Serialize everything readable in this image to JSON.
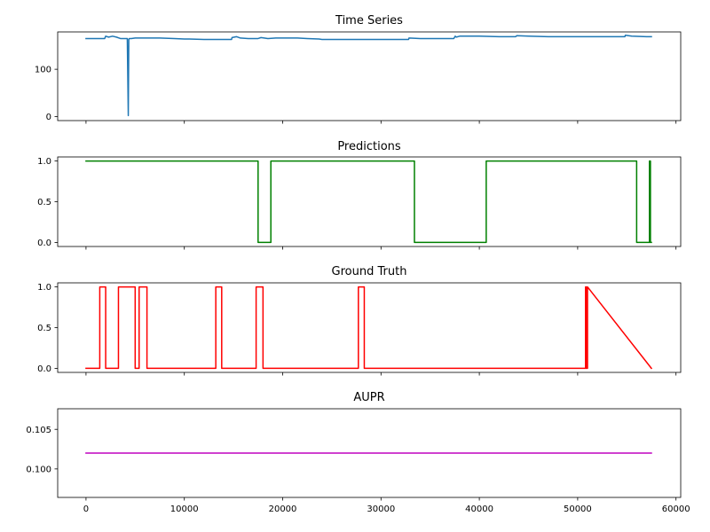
{
  "chart_data": [
    {
      "type": "line",
      "title": "Time Series",
      "xlabel": "",
      "ylabel": "",
      "xlim": [
        -2880,
        60480
      ],
      "ylim": [
        -8.5,
        179
      ],
      "yticks": [
        0,
        100
      ],
      "xticks": [
        0,
        10000,
        20000,
        30000,
        40000,
        50000,
        60000
      ],
      "xtick_labels_visible": false,
      "series": [
        {
          "color": "#1f77b4",
          "x": [
            0,
            1900,
            2000,
            2300,
            2700,
            3100,
            3500,
            4200,
            4300,
            4350,
            4400,
            4600,
            5000,
            6000,
            7500,
            9000,
            10000,
            10500,
            12000,
            13000,
            14000,
            14800,
            14850,
            15300,
            15700,
            16500,
            17500,
            17800,
            18500,
            19300,
            20000,
            21500,
            22500,
            23700,
            24000,
            26000,
            28000,
            30000,
            32500,
            32800,
            32850,
            34000,
            35000,
            37400,
            37550,
            37650,
            38000,
            40000,
            42000,
            43700,
            43800,
            45000,
            47000,
            49000,
            51000,
            53000,
            54800,
            54850,
            55500,
            57000,
            57500
          ],
          "values": [
            165,
            165,
            170,
            168,
            170,
            168,
            165,
            165,
            2,
            163,
            165,
            165,
            166,
            166,
            166,
            165,
            164,
            164,
            163,
            163,
            163,
            163,
            167,
            169,
            166,
            165,
            165,
            167,
            165,
            166,
            166,
            166,
            165,
            164,
            163,
            163,
            163,
            163,
            163,
            163,
            166,
            165,
            165,
            165,
            170,
            168,
            170,
            170,
            169,
            169,
            171,
            170,
            169,
            169,
            169,
            169,
            169,
            172,
            170,
            169,
            169
          ]
        }
      ]
    },
    {
      "type": "line",
      "title": "Predictions",
      "xlabel": "",
      "ylabel": "",
      "xlim": [
        -2880,
        60480
      ],
      "ylim": [
        -0.05,
        1.05
      ],
      "yticks": [
        0.0,
        0.5,
        1.0
      ],
      "ytick_labels": [
        "0.0",
        "0.5",
        "1.0"
      ],
      "xticks": [
        0,
        10000,
        20000,
        30000,
        40000,
        50000,
        60000
      ],
      "xtick_labels_visible": false,
      "series": [
        {
          "color": "#008000",
          "x": [
            0,
            17500,
            17500,
            18800,
            18800,
            33400,
            33400,
            40700,
            40700,
            56000,
            56000,
            57300,
            57300,
            57400,
            57400,
            57500
          ],
          "values": [
            1,
            1,
            0,
            0,
            1,
            1,
            0,
            0,
            1,
            1,
            0,
            0,
            1,
            1,
            0,
            0
          ]
        }
      ]
    },
    {
      "type": "line",
      "title": "Ground Truth",
      "xlabel": "",
      "ylabel": "",
      "xlim": [
        -2880,
        60480
      ],
      "ylim": [
        -0.05,
        1.05
      ],
      "yticks": [
        0.0,
        0.5,
        1.0
      ],
      "ytick_labels": [
        "0.0",
        "0.5",
        "1.0"
      ],
      "xticks": [
        0,
        10000,
        20000,
        30000,
        40000,
        50000,
        60000
      ],
      "xtick_labels_visible": false,
      "series": [
        {
          "color": "#ff0000",
          "x": [
            0,
            1400,
            1400,
            2000,
            2000,
            3300,
            3300,
            5000,
            5000,
            5400,
            5400,
            6200,
            6200,
            13200,
            13200,
            13800,
            13800,
            17300,
            17300,
            18000,
            18000,
            27700,
            27700,
            28300,
            28300,
            50800,
            50800,
            50900,
            50900,
            51000,
            51000,
            57500
          ],
          "values": [
            0,
            0,
            1,
            1,
            0,
            0,
            1,
            1,
            0,
            0,
            1,
            1,
            0,
            0,
            1,
            1,
            0,
            0,
            1,
            1,
            0,
            0,
            1,
            1,
            0,
            0,
            1,
            1,
            0,
            0,
            1,
            0
          ]
        }
      ]
    },
    {
      "type": "line",
      "title": "AUPR",
      "xlabel": "",
      "ylabel": "",
      "xlim": [
        -2880,
        60480
      ],
      "ylim": [
        0.0964,
        0.1076
      ],
      "yticks": [
        0.1,
        0.105
      ],
      "ytick_labels": [
        "0.100",
        "0.105"
      ],
      "xticks": [
        0,
        10000,
        20000,
        30000,
        40000,
        50000,
        60000
      ],
      "xtick_labels": [
        "0",
        "10000",
        "20000",
        "30000",
        "40000",
        "50000",
        "60000"
      ],
      "xtick_labels_visible": true,
      "series": [
        {
          "color": "#bf00bf",
          "x": [
            0,
            57500
          ],
          "values": [
            0.102,
            0.102
          ]
        }
      ]
    }
  ]
}
